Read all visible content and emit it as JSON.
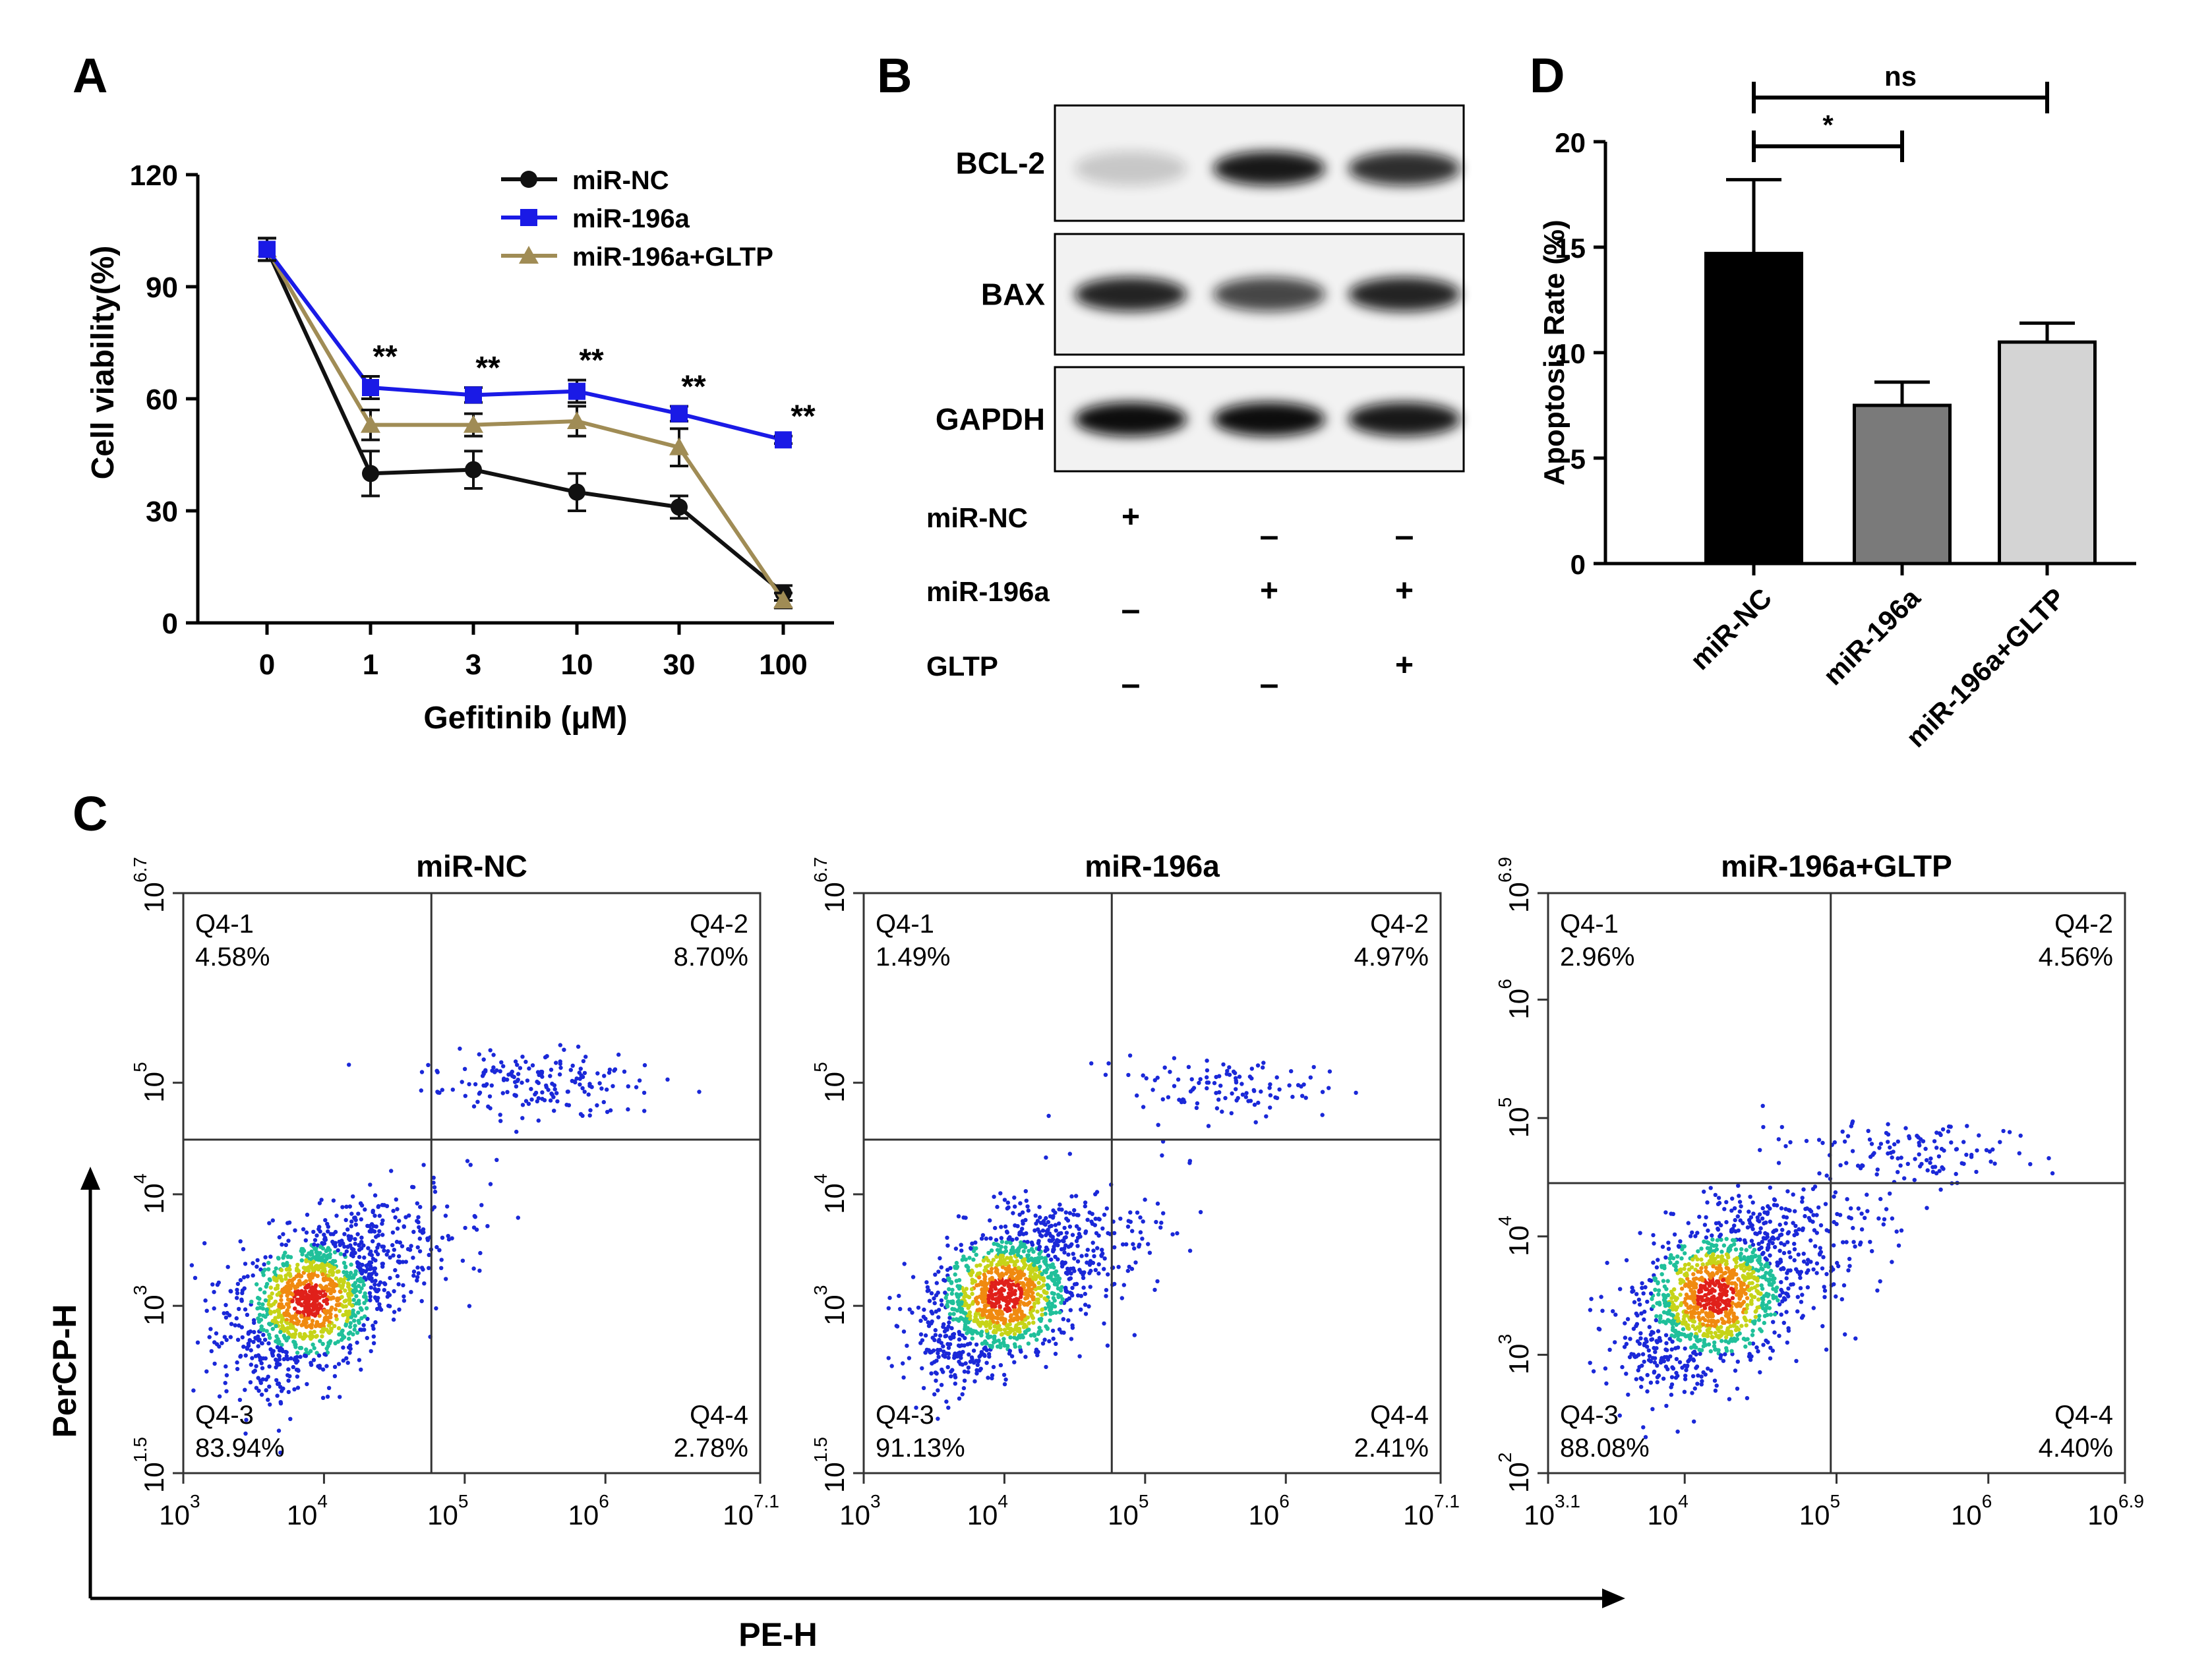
{
  "panels": {
    "A": "A",
    "B": "B",
    "C": "C",
    "D": "D"
  },
  "chart_data": [
    {
      "panel": "A",
      "type": "line",
      "xlabel": "Gefitinib (μM)",
      "ylabel": "Cell viability(%)",
      "categories": [
        "0",
        "1",
        "3",
        "10",
        "30",
        "100"
      ],
      "ylim": [
        0,
        120
      ],
      "yticks": [
        "0",
        "30",
        "60",
        "90",
        "120"
      ],
      "series": [
        {
          "name": "miR-NC",
          "color": "#111111",
          "marker": "circle",
          "values": [
            100,
            40,
            41,
            35,
            31,
            8
          ],
          "err": [
            3,
            6,
            5,
            5,
            3,
            2
          ]
        },
        {
          "name": "miR-196a",
          "color": "#1a1ae6",
          "marker": "square",
          "values": [
            100,
            63,
            61,
            62,
            56,
            49
          ],
          "err": [
            3,
            3,
            2,
            3,
            2,
            1
          ]
        },
        {
          "name": "miR-196a+GLTP",
          "color": "#a08c55",
          "marker": "triangle",
          "values": [
            100,
            53,
            53,
            54,
            47,
            6
          ],
          "err": [
            3,
            4,
            3,
            4,
            5,
            2
          ]
        }
      ],
      "annotations": [
        "**",
        "**",
        "**",
        "**",
        "**"
      ],
      "annotation_categories": [
        "1",
        "3",
        "10",
        "30",
        "100"
      ]
    },
    {
      "panel": "D",
      "type": "bar",
      "ylabel": "Apoptosis Rate (%)",
      "categories": [
        "miR-NC",
        "miR-196a",
        "miR-196a+GLTP"
      ],
      "values": [
        14.7,
        7.5,
        10.5
      ],
      "err": [
        3.5,
        1.1,
        0.9
      ],
      "colors": [
        "#000000",
        "#7a7a7a",
        "#d4d4d4"
      ],
      "ylim": [
        0,
        20
      ],
      "yticks": [
        "0",
        "5",
        "10",
        "15",
        "20"
      ],
      "significance": [
        {
          "label": "*",
          "from": "miR-NC",
          "to": "miR-196a"
        },
        {
          "label": "ns",
          "from": "miR-NC",
          "to": "miR-196a+GLTP"
        }
      ]
    }
  ],
  "western": {
    "bands": [
      "BCL-2",
      "BAX",
      "GAPDH"
    ],
    "intensity": {
      "BCL-2": [
        0.18,
        0.95,
        0.85
      ],
      "BAX": [
        0.9,
        0.75,
        0.9
      ],
      "GAPDH": [
        1.0,
        1.0,
        0.95
      ]
    },
    "conditions": [
      {
        "label": "miR-NC",
        "signs": [
          "+",
          "–",
          "–"
        ]
      },
      {
        "label": "miR-196a",
        "signs": [
          "–",
          "+",
          "+"
        ]
      },
      {
        "label": "GLTP",
        "signs": [
          "–",
          "–",
          "+"
        ]
      }
    ]
  },
  "flow": {
    "x_axis_label": "PE-H",
    "y_axis_label": "PerCP-H",
    "plots": [
      {
        "title": "miR-NC",
        "quadrants": [
          {
            "name": "Q4-1",
            "pct": "4.58%"
          },
          {
            "name": "Q4-2",
            "pct": "8.70%"
          },
          {
            "name": "Q4-3",
            "pct": "83.94%"
          },
          {
            "name": "Q4-4",
            "pct": "2.78%"
          }
        ],
        "xticks": [
          {
            "base": "10",
            "exp": "3"
          },
          {
            "base": "10",
            "exp": "4"
          },
          {
            "base": "10",
            "exp": "5"
          },
          {
            "base": "10",
            "exp": "6"
          },
          {
            "base": "10",
            "exp": "7.1"
          }
        ],
        "yticks": [
          {
            "base": "10",
            "exp": "1.5"
          },
          {
            "base": "10",
            "exp": "3"
          },
          {
            "base": "10",
            "exp": "4"
          },
          {
            "base": "10",
            "exp": "5"
          },
          {
            "base": "10",
            "exp": "6.7"
          }
        ],
        "cluster": {
          "low_x": 3.9,
          "low_y": 3.05,
          "high_x": 5.5,
          "high_y": 5.0,
          "high_frac": 0.12
        }
      },
      {
        "title": "miR-196a",
        "quadrants": [
          {
            "name": "Q4-1",
            "pct": "1.49%"
          },
          {
            "name": "Q4-2",
            "pct": "4.97%"
          },
          {
            "name": "Q4-3",
            "pct": "91.13%"
          },
          {
            "name": "Q4-4",
            "pct": "2.41%"
          }
        ],
        "xticks": [
          {
            "base": "10",
            "exp": "3"
          },
          {
            "base": "10",
            "exp": "4"
          },
          {
            "base": "10",
            "exp": "5"
          },
          {
            "base": "10",
            "exp": "6"
          },
          {
            "base": "10",
            "exp": "7.1"
          }
        ],
        "yticks": [
          {
            "base": "10",
            "exp": "1.5"
          },
          {
            "base": "10",
            "exp": "3"
          },
          {
            "base": "10",
            "exp": "4"
          },
          {
            "base": "10",
            "exp": "5"
          },
          {
            "base": "10",
            "exp": "6.7"
          }
        ],
        "cluster": {
          "low_x": 4.0,
          "low_y": 3.1,
          "high_x": 5.6,
          "high_y": 4.95,
          "high_frac": 0.06
        }
      },
      {
        "title": "miR-196a+GLTP",
        "quadrants": [
          {
            "name": "Q4-1",
            "pct": "2.96%"
          },
          {
            "name": "Q4-2",
            "pct": "4.56%"
          },
          {
            "name": "Q4-3",
            "pct": "88.08%"
          },
          {
            "name": "Q4-4",
            "pct": "4.40%"
          }
        ],
        "xticks": [
          {
            "base": "10",
            "exp": "3.1"
          },
          {
            "base": "10",
            "exp": "4"
          },
          {
            "base": "10",
            "exp": "5"
          },
          {
            "base": "10",
            "exp": "6"
          },
          {
            "base": "10",
            "exp": "6.9"
          }
        ],
        "yticks": [
          {
            "base": "10",
            "exp": "2"
          },
          {
            "base": "10",
            "exp": "3"
          },
          {
            "base": "10",
            "exp": "4"
          },
          {
            "base": "10",
            "exp": "5"
          },
          {
            "base": "10",
            "exp": "6"
          },
          {
            "base": "10",
            "exp": "6.9"
          }
        ],
        "cluster": {
          "low_x": 4.2,
          "low_y": 3.5,
          "high_x": 5.5,
          "high_y": 4.7,
          "high_frac": 0.07
        }
      }
    ]
  }
}
